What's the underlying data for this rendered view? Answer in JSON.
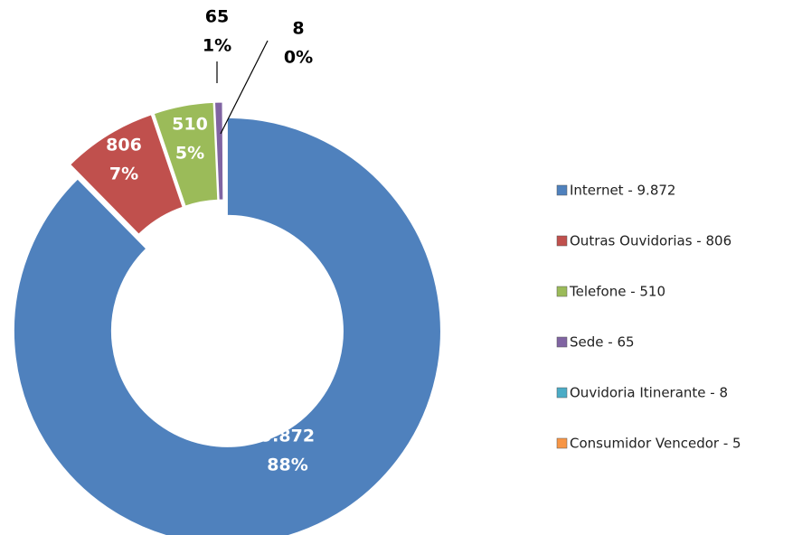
{
  "chart_data": {
    "type": "donut",
    "categories": [
      "Internet - 9.872",
      "Outras Ouvidorias - 806",
      "Telefone - 510",
      "Sede - 65",
      "Ouvidoria Itinerante - 8",
      "Consumidor Vencedor - 5"
    ],
    "values": [
      9872,
      806,
      510,
      65,
      8,
      5
    ],
    "value_labels": [
      "9.872",
      "806",
      "510",
      "65",
      "8",
      null
    ],
    "percents": [
      88,
      7,
      5,
      1,
      0,
      null
    ],
    "percent_labels": [
      "88%",
      "7%",
      "5%",
      "1%",
      "0%",
      null
    ],
    "colors": [
      "#4f81bd",
      "#c0504d",
      "#9bbb59",
      "#8064a2",
      "#4bacc6",
      "#f79646"
    ],
    "legend": "right"
  }
}
